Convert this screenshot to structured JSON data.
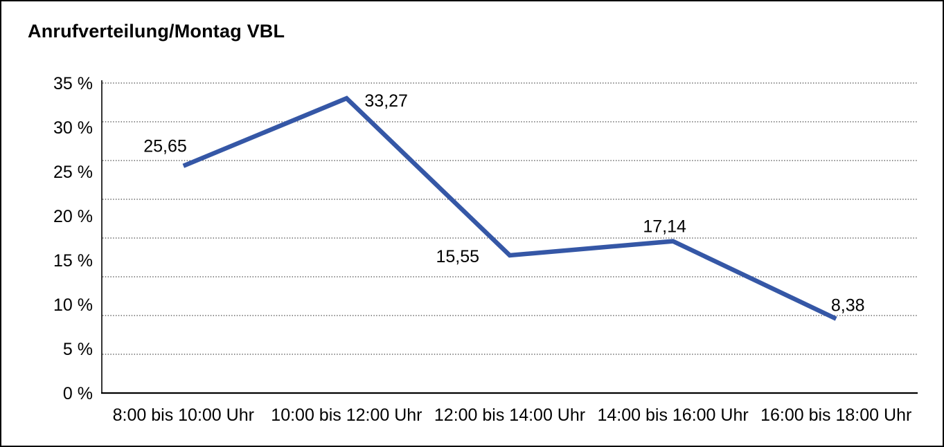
{
  "title": "Anrufverteilung/Montag VBL",
  "chart_data": {
    "type": "line",
    "title": "Anrufverteilung/Montag VBL",
    "categories": [
      "8:00 bis 10:00 Uhr",
      "10:00 bis 12:00 Uhr",
      "12:00 bis 14:00 Uhr",
      "14:00 bis 16:00 Uhr",
      "16:00 bis 18:00 Uhr"
    ],
    "values": [
      25.65,
      33.27,
      15.55,
      17.14,
      8.38
    ],
    "value_labels": [
      "25,65",
      "33,27",
      "15,55",
      "17,14",
      "8,38"
    ],
    "xlabel": "",
    "ylabel": "",
    "ylim": [
      0,
      35
    ],
    "ytick_labels": [
      "0 %",
      "5 %",
      "10 %",
      "15 %",
      "20 %",
      "25 %",
      "30 %",
      "35 %"
    ],
    "grid": "horizontal-dotted",
    "gridline_intervals": 8,
    "legend": "none",
    "line_color": "#3557a6",
    "grid_color": "#444444",
    "axis_color": "#000000",
    "text_color": "#000000"
  }
}
